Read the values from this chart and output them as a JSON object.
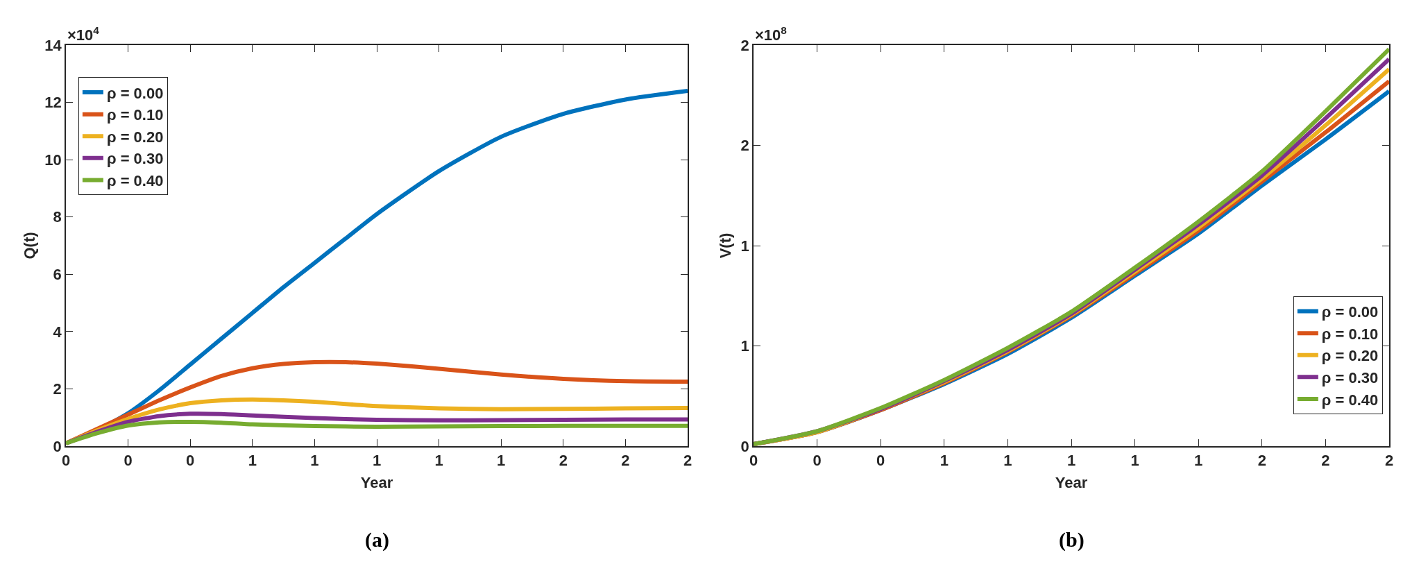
{
  "chart_data": [
    {
      "type": "line",
      "xlabel": "Year",
      "ylabel": "Q(t)",
      "legend": "top left",
      "grid": false,
      "xlim": [
        0,
        2
      ],
      "ylim": [
        0,
        14
      ],
      "xticks": [
        {
          "value": 0,
          "label": "0"
        },
        {
          "value": 0.2,
          "label": "0"
        },
        {
          "value": 0.4,
          "label": "0"
        },
        {
          "value": 0.6,
          "label": "1"
        },
        {
          "value": 0.8,
          "label": "1"
        },
        {
          "value": 1.0,
          "label": "1"
        },
        {
          "value": 1.2,
          "label": "1"
        },
        {
          "value": 1.4,
          "label": "1"
        },
        {
          "value": 1.6,
          "label": "2"
        },
        {
          "value": 1.8,
          "label": "2"
        },
        {
          "value": 2.0,
          "label": "2"
        }
      ],
      "yticks": [
        0,
        2,
        4,
        6,
        8,
        10,
        12,
        14
      ],
      "annotations": [
        "×10$^{4}$",
        "(a)"
      ],
      "series": [
        {
          "name": "ρ = 0.00",
          "color": "#0072bd",
          "x": [
            0,
            0.1,
            0.2,
            0.3,
            0.4,
            0.5,
            0.6,
            0.7,
            0.8,
            0.9,
            1.0,
            1.2,
            1.4,
            1.6,
            1.8,
            2.0
          ],
          "values": [
            0.1,
            0.55,
            1.15,
            1.95,
            2.85,
            3.75,
            4.65,
            5.55,
            6.4,
            7.25,
            8.1,
            9.6,
            10.8,
            11.6,
            12.1,
            12.4
          ]
        },
        {
          "name": "ρ = 0.10",
          "color": "#d95319",
          "x": [
            0,
            0.1,
            0.2,
            0.3,
            0.4,
            0.5,
            0.6,
            0.7,
            0.8,
            0.9,
            1.0,
            1.1,
            1.2,
            1.4,
            1.6,
            1.8,
            2.0
          ],
          "values": [
            0.1,
            0.6,
            1.1,
            1.6,
            2.05,
            2.45,
            2.72,
            2.87,
            2.93,
            2.93,
            2.88,
            2.8,
            2.7,
            2.5,
            2.35,
            2.27,
            2.25
          ]
        },
        {
          "name": "ρ = 0.20",
          "color": "#edb120",
          "x": [
            0,
            0.1,
            0.2,
            0.3,
            0.4,
            0.5,
            0.6,
            0.7,
            0.8,
            0.9,
            1.0,
            1.2,
            1.4,
            1.6,
            1.8,
            2.0
          ],
          "values": [
            0.1,
            0.55,
            0.95,
            1.28,
            1.5,
            1.6,
            1.63,
            1.6,
            1.55,
            1.47,
            1.4,
            1.32,
            1.29,
            1.3,
            1.32,
            1.33
          ]
        },
        {
          "name": "ρ = 0.30",
          "color": "#7e2f8e",
          "x": [
            0,
            0.1,
            0.2,
            0.3,
            0.4,
            0.5,
            0.6,
            0.8,
            1.0,
            1.2,
            1.4,
            1.6,
            1.8,
            2.0
          ],
          "values": [
            0.1,
            0.5,
            0.85,
            1.05,
            1.13,
            1.12,
            1.07,
            0.98,
            0.92,
            0.9,
            0.91,
            0.92,
            0.93,
            0.93
          ]
        },
        {
          "name": "ρ = 0.40",
          "color": "#77ac30",
          "x": [
            0,
            0.1,
            0.2,
            0.3,
            0.4,
            0.5,
            0.6,
            0.8,
            1.0,
            1.2,
            1.4,
            1.6,
            1.8,
            2.0
          ],
          "values": [
            0.1,
            0.45,
            0.72,
            0.83,
            0.85,
            0.82,
            0.76,
            0.7,
            0.68,
            0.69,
            0.7,
            0.71,
            0.71,
            0.71
          ]
        }
      ]
    },
    {
      "type": "line",
      "xlabel": "Year",
      "ylabel": "V(t)",
      "legend": "bottom right",
      "grid": false,
      "xlim": [
        0,
        2
      ],
      "ylim": [
        0,
        2
      ],
      "xticks": [
        {
          "value": 0,
          "label": "0"
        },
        {
          "value": 0.2,
          "label": "0"
        },
        {
          "value": 0.4,
          "label": "0"
        },
        {
          "value": 0.6,
          "label": "1"
        },
        {
          "value": 0.8,
          "label": "1"
        },
        {
          "value": 1.0,
          "label": "1"
        },
        {
          "value": 1.2,
          "label": "1"
        },
        {
          "value": 1.4,
          "label": "1"
        },
        {
          "value": 1.6,
          "label": "2"
        },
        {
          "value": 1.8,
          "label": "2"
        },
        {
          "value": 2.0,
          "label": "2"
        }
      ],
      "yticks": [
        0,
        {
          "value": 0.5,
          "label": "1"
        },
        1,
        {
          "value": 1.5,
          "label": "2"
        },
        2
      ],
      "annotations": [
        "×10$^{8}$",
        "(b)"
      ],
      "x": [
        0,
        0.2,
        0.4,
        0.6,
        0.8,
        1.0,
        1.2,
        1.4,
        1.6,
        1.8,
        2.0
      ],
      "series": [
        {
          "name": "ρ = 0.00",
          "color": "#0072bd",
          "values": [
            0.01,
            0.07,
            0.18,
            0.31,
            0.46,
            0.64,
            0.85,
            1.06,
            1.3,
            1.53,
            1.77
          ]
        },
        {
          "name": "ρ = 0.10",
          "color": "#d95319",
          "values": [
            0.01,
            0.07,
            0.18,
            0.315,
            0.47,
            0.65,
            0.86,
            1.075,
            1.32,
            1.565,
            1.82
          ]
        },
        {
          "name": "ρ = 0.20",
          "color": "#edb120",
          "values": [
            0.01,
            0.07,
            0.185,
            0.32,
            0.475,
            0.655,
            0.87,
            1.09,
            1.335,
            1.6,
            1.88
          ]
        },
        {
          "name": "ρ = 0.30",
          "color": "#7e2f8e",
          "values": [
            0.01,
            0.075,
            0.185,
            0.325,
            0.48,
            0.66,
            0.88,
            1.105,
            1.35,
            1.635,
            1.93
          ]
        },
        {
          "name": "ρ = 0.40",
          "color": "#77ac30",
          "values": [
            0.01,
            0.075,
            0.19,
            0.33,
            0.49,
            0.67,
            0.89,
            1.12,
            1.37,
            1.67,
            1.98
          ]
        }
      ]
    }
  ]
}
